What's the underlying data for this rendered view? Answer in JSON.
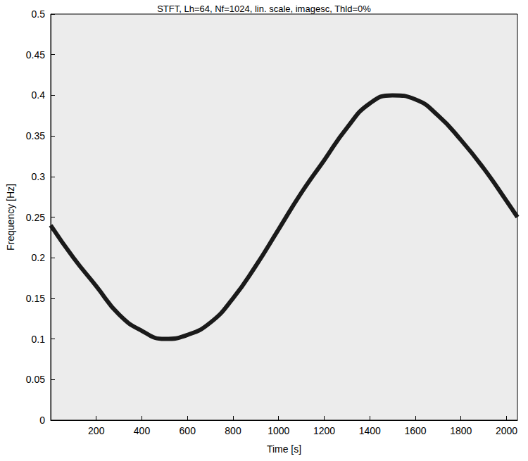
{
  "chart_data": {
    "type": "line",
    "title": "STFT, Lh=64, Nf=1024, lin. scale, imagesc, Thld=0%",
    "x_label": "Time [s]",
    "y_label": "Frequency [Hz]",
    "x": [
      0,
      100,
      200,
      300,
      400,
      500,
      600,
      700,
      800,
      900,
      1000,
      1100,
      1200,
      1300,
      1400,
      1500,
      1600,
      1700,
      1800,
      1900,
      2000,
      2048
    ],
    "values": [
      0.24,
      0.2,
      0.165,
      0.13,
      0.11,
      0.1,
      0.105,
      0.12,
      0.15,
      0.19,
      0.235,
      0.28,
      0.32,
      0.36,
      0.39,
      0.4,
      0.395,
      0.375,
      0.345,
      0.31,
      0.27,
      0.25
    ],
    "color": "#1a1a1a",
    "line_style": "solid",
    "xlim": [
      0,
      2048
    ],
    "xticks": [
      200,
      400,
      600,
      800,
      1000,
      1200,
      1400,
      1600,
      1800,
      2000
    ],
    "ylim": [
      0,
      0.5
    ],
    "yticks": [
      0,
      0.05,
      0.1,
      0.15,
      0.2,
      0.25,
      0.3,
      0.35,
      0.4,
      0.45,
      0.5
    ],
    "grid": false
  }
}
